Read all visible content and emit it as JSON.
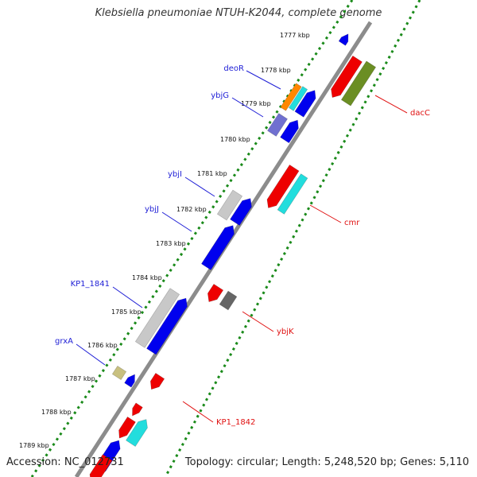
{
  "title": "Klebsiella pneumoniae NTUH-K2044, complete genome",
  "footer": {
    "accession": "Accession: NC_012731",
    "summary": "Topology: circular; Length: 5,248,520 bp; Genes: 5,110"
  },
  "scale": {
    "ticks": [
      "1777 kbp",
      "1778 kbp",
      "1779 kbp",
      "1780 kbp",
      "1781 kbp",
      "1782 kbp",
      "1783 kbp",
      "1784 kbp",
      "1785 kbp",
      "1786 kbp",
      "1787 kbp",
      "1788 kbp",
      "1789 kbp"
    ]
  },
  "labels": {
    "forward": [
      "deoR",
      "ybjG",
      "ybjI",
      "ybjJ",
      "KP1_1841",
      "grxA"
    ],
    "reverse": [
      "dacC",
      "cmr",
      "ybjK",
      "KP1_1842"
    ]
  },
  "colors": {
    "forward_label": "#1f1fd6",
    "reverse_label": "#e01010",
    "backbone": "#8c8c8c",
    "dotted_track": "#1a8a1a",
    "gene_blue": "#0000ee",
    "gene_red": "#ee0000",
    "gene_grey": "#c8c8c8",
    "gene_olive": "#6b8e23",
    "gene_cyan": "#22dddd",
    "gene_orange": "#ff8800",
    "gene_purple": "#7070d0",
    "gene_khaki": "#c8c080",
    "gene_darkgrey": "#666666"
  }
}
